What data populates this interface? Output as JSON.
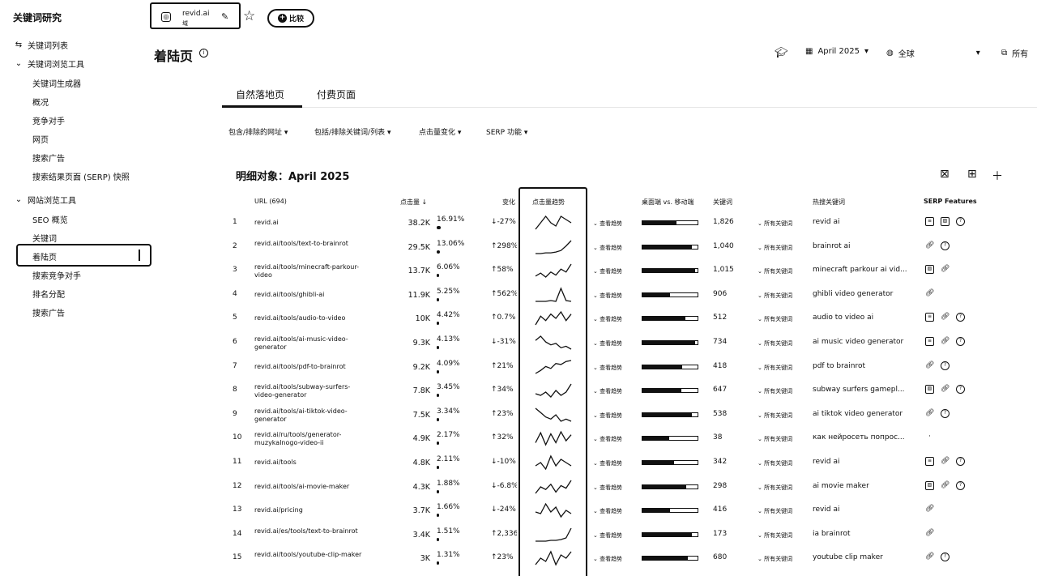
{
  "app": {
    "title": "关键词研究"
  },
  "sidebar": {
    "keyword_list": "关键词列表",
    "kw_browse_tools": "关键词浏览工具",
    "kw_items": [
      "关键词生成器",
      "概况",
      "竞争对手",
      "网页",
      "搜索广告",
      "搜索结果页面 (SERP) 快照"
    ],
    "site_browse_tools": "网站浏览工具",
    "site_items": [
      "SEO 概览",
      "关键词",
      "着陆页",
      "搜索竞争对手",
      "排名分配",
      "搜索广告"
    ]
  },
  "topbar": {
    "domain": "revid.ai",
    "domain_sub": "域",
    "compare_label": "比较"
  },
  "header": {
    "title": "着陆页",
    "date": "April 2025",
    "region": "全球",
    "all_label": "所有"
  },
  "tabs": [
    "自然落地页",
    "付费页面"
  ],
  "filters": [
    "包含/排除的网址",
    "包括/排除关键词/列表",
    "点击量变化",
    "SERP 功能"
  ],
  "table": {
    "title": "明细对象：April 2025",
    "headers": {
      "url": "URL (694)",
      "clicks": "点击量",
      "change": "变化",
      "trend": "点击量趋势",
      "desktop_mobile": "桌面端 vs. 移动端",
      "keywords": "关键词",
      "top_keyword": "热搜关键词",
      "serp": "SERP Features"
    },
    "view_trend_label": "查看趋势",
    "all_keywords_label": "所有关键词",
    "rows": [
      {
        "num": "1",
        "url": "revid.ai",
        "clicks": "38.2K",
        "share": "16.91%",
        "share_frac": 0.17,
        "dir": "↓",
        "change": "-27%",
        "trend": [
          10,
          12,
          14,
          12,
          11,
          14,
          13,
          12
        ],
        "desktop": 0.62,
        "keywords": "1,826",
        "top_keyword": "revid ai",
        "serp": [
          "featured-snippet-icon",
          "image-icon",
          "faq-icon"
        ]
      },
      {
        "num": "2",
        "url": "revid.ai/tools/text-to-brainrot",
        "clicks": "29.5K",
        "share": "13.06%",
        "share_frac": 0.13,
        "dir": "↑",
        "change": "298%",
        "trend": [
          2,
          2,
          3,
          3,
          4,
          6,
          12,
          19
        ],
        "desktop": 0.9,
        "keywords": "1,040",
        "top_keyword": "brainrot ai",
        "serp": [
          "link-icon",
          "faq-icon"
        ]
      },
      {
        "num": "3",
        "url": "revid.ai/tools/minecraft-parkour-video",
        "clicks": "13.7K",
        "share": "6.06%",
        "share_frac": 0.06,
        "dir": "↑",
        "change": "58%",
        "trend": [
          6,
          9,
          5,
          10,
          7,
          13,
          10,
          18
        ],
        "desktop": 0.96,
        "keywords": "1,015",
        "top_keyword": "minecraft parkour ai vid...",
        "serp": [
          "image-icon",
          "link-icon"
        ]
      },
      {
        "num": "4",
        "url": "revid.ai/tools/ghibli-ai",
        "clicks": "11.9K",
        "share": "5.25%",
        "share_frac": 0.05,
        "dir": "↑",
        "change": "562%",
        "trend": [
          2,
          2,
          2,
          3,
          2,
          18,
          3,
          2
        ],
        "desktop": 0.5,
        "keywords": "906",
        "top_keyword": "ghibli video generator",
        "serp": [
          "link-icon"
        ]
      },
      {
        "num": "5",
        "url": "revid.ai/tools/audio-to-video",
        "clicks": "10K",
        "share": "4.42%",
        "share_frac": 0.044,
        "dir": "↑",
        "change": "0.7%",
        "trend": [
          7,
          11,
          9,
          12,
          10,
          13,
          9,
          12
        ],
        "desktop": 0.78,
        "keywords": "512",
        "top_keyword": "audio to video ai",
        "serp": [
          "featured-snippet-icon",
          "link-icon",
          "faq-icon"
        ]
      },
      {
        "num": "6",
        "url": "revid.ai/tools/ai-music-video-generator",
        "clicks": "9.3K",
        "share": "4.13%",
        "share_frac": 0.041,
        "dir": "↓",
        "change": "-31%",
        "trend": [
          12,
          15,
          11,
          9,
          10,
          7,
          8,
          6
        ],
        "desktop": 0.95,
        "keywords": "734",
        "top_keyword": "ai music video generator",
        "serp": [
          "featured-snippet-icon",
          "link-icon",
          "faq-icon"
        ]
      },
      {
        "num": "7",
        "url": "revid.ai/tools/pdf-to-brainrot",
        "clicks": "9.2K",
        "share": "4.09%",
        "share_frac": 0.04,
        "dir": "↑",
        "change": "21%",
        "trend": [
          3,
          6,
          10,
          8,
          13,
          12,
          15,
          16
        ],
        "desktop": 0.72,
        "keywords": "418",
        "top_keyword": "pdf to brainrot",
        "serp": [
          "link-icon",
          "faq-icon"
        ]
      },
      {
        "num": "8",
        "url": "revid.ai/tools/subway-surfers-video-generator",
        "clicks": "7.8K",
        "share": "3.45%",
        "share_frac": 0.035,
        "dir": "↑",
        "change": "34%",
        "trend": [
          10,
          9,
          11,
          8,
          12,
          9,
          11,
          16
        ],
        "desktop": 0.7,
        "keywords": "647",
        "top_keyword": "subway surfers gamepl...",
        "serp": [
          "image-icon",
          "link-icon",
          "faq-icon"
        ]
      },
      {
        "num": "9",
        "url": "revid.ai/tools/ai-tiktok-video-generator",
        "clicks": "7.5K",
        "share": "3.34%",
        "share_frac": 0.033,
        "dir": "↑",
        "change": "23%",
        "trend": [
          14,
          12,
          10,
          9,
          11,
          8,
          9,
          8
        ],
        "desktop": 0.9,
        "keywords": "538",
        "top_keyword": "ai tiktok video generator",
        "serp": [
          "link-icon",
          "faq-icon"
        ]
      },
      {
        "num": "10",
        "url": "revid.ai/ru/tools/generator-muzykalnogo-video-ii",
        "clicks": "4.9K",
        "share": "2.17%",
        "share_frac": 0.022,
        "dir": "↑",
        "change": "32%",
        "trend": [
          6,
          16,
          4,
          15,
          6,
          17,
          8,
          14
        ],
        "desktop": 0.48,
        "keywords": "38",
        "top_keyword": "как нейросеть попрос...",
        "serp": [
          "dot-icon"
        ]
      },
      {
        "num": "11",
        "url": "revid.ai/tools",
        "clicks": "4.8K",
        "share": "2.11%",
        "share_frac": 0.021,
        "dir": "↓",
        "change": "-10%",
        "trend": [
          11,
          12,
          10,
          14,
          11,
          13,
          12,
          11
        ],
        "desktop": 0.58,
        "keywords": "342",
        "top_keyword": "revid ai",
        "serp": [
          "featured-snippet-icon",
          "link-icon",
          "faq-icon"
        ]
      },
      {
        "num": "12",
        "url": "revid.ai/tools/ai-movie-maker",
        "clicks": "4.3K",
        "share": "1.88%",
        "share_frac": 0.019,
        "dir": "↓",
        "change": "-6.8%",
        "trend": [
          5,
          10,
          8,
          12,
          6,
          11,
          9,
          15
        ],
        "desktop": 0.8,
        "keywords": "298",
        "top_keyword": "ai movie maker",
        "serp": [
          "image-icon",
          "link-icon",
          "faq-icon"
        ]
      },
      {
        "num": "13",
        "url": "revid.ai/pricing",
        "clicks": "3.7K",
        "share": "1.66%",
        "share_frac": 0.017,
        "dir": "↓",
        "change": "-24%",
        "trend": [
          9,
          8,
          14,
          9,
          12,
          6,
          10,
          8
        ],
        "desktop": 0.5,
        "keywords": "416",
        "top_keyword": "revid ai",
        "serp": [
          "link-icon"
        ]
      },
      {
        "num": "14",
        "url": "revid.ai/es/tools/text-to-brainrot",
        "clicks": "3.4K",
        "share": "1.51%",
        "share_frac": 0.015,
        "dir": "↑",
        "change": "2,336%",
        "trend": [
          2,
          2,
          2,
          3,
          3,
          4,
          6,
          18
        ],
        "desktop": 0.9,
        "keywords": "173",
        "top_keyword": "ia brainrot",
        "serp": [
          "link-icon"
        ]
      },
      {
        "num": "15",
        "url": "revid.ai/tools/youtube-clip-maker",
        "clicks": "3K",
        "share": "1.31%",
        "share_frac": 0.013,
        "dir": "↑",
        "change": "23%",
        "trend": [
          8,
          10,
          9,
          12,
          8,
          11,
          10,
          12
        ],
        "desktop": 0.82,
        "keywords": "680",
        "top_keyword": "youtube clip maker",
        "serp": [
          "link-icon",
          "faq-icon"
        ]
      }
    ]
  }
}
